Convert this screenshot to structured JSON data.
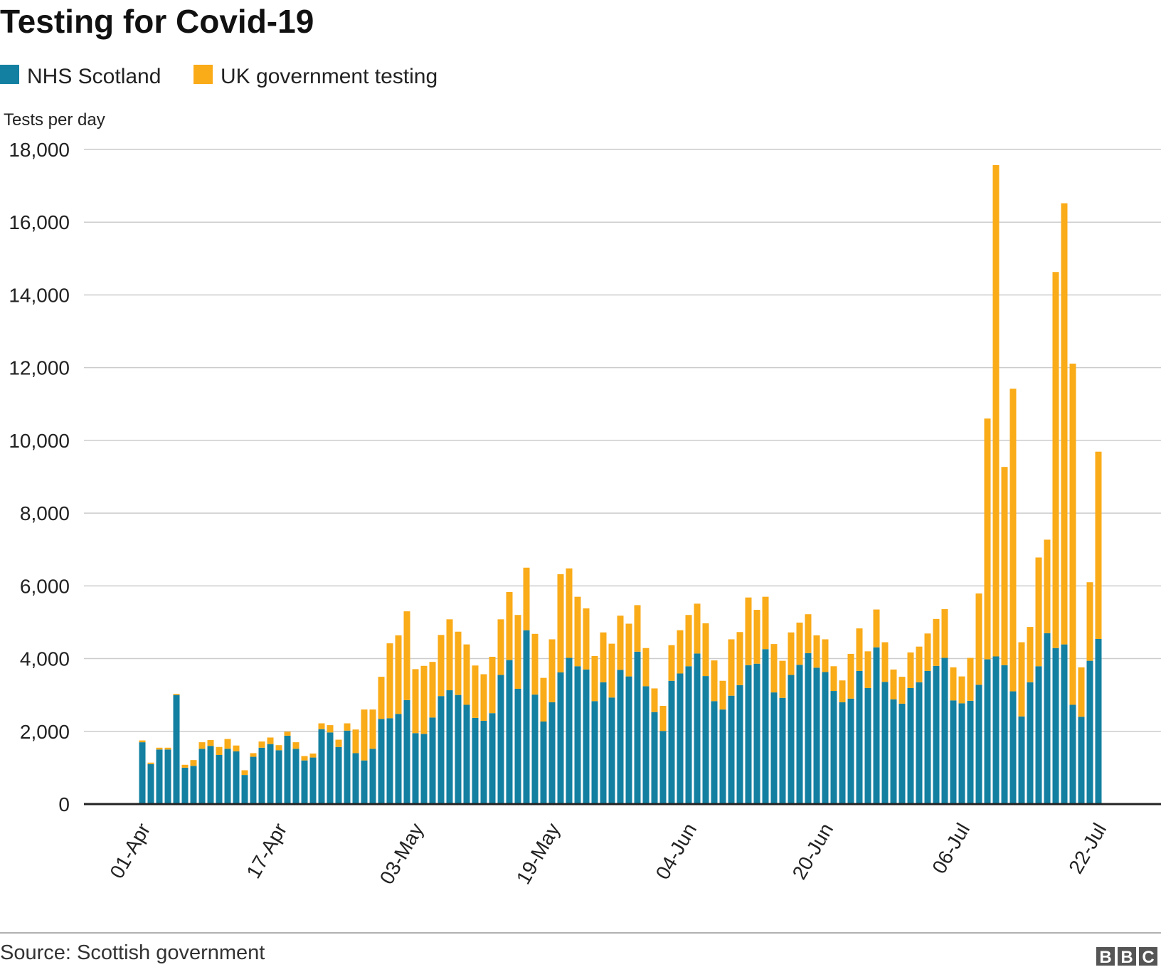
{
  "chart_data": {
    "type": "bar",
    "stacked": true,
    "title": "Testing for Covid-19",
    "ylabel": "Tests per day",
    "xlabel": "",
    "ylim": [
      0,
      18000
    ],
    "yticks": [
      "0",
      "2,000",
      "4,000",
      "6,000",
      "8,000",
      "10,000",
      "12,000",
      "14,000",
      "16,000",
      "18,000"
    ],
    "ytick_values": [
      0,
      2000,
      4000,
      6000,
      8000,
      10000,
      12000,
      14000,
      16000,
      18000
    ],
    "xticks": [
      {
        "label": "01-Apr",
        "index": 0
      },
      {
        "label": "17-Apr",
        "index": 16
      },
      {
        "label": "03-May",
        "index": 32
      },
      {
        "label": "19-May",
        "index": 48
      },
      {
        "label": "04-Jun",
        "index": 64
      },
      {
        "label": "20-Jun",
        "index": 80
      },
      {
        "label": "06-Jul",
        "index": 96
      },
      {
        "label": "22-Jul",
        "index": 112
      }
    ],
    "x_start": "01-Apr",
    "categories": [
      "01-Apr",
      "02-Apr",
      "03-Apr",
      "04-Apr",
      "05-Apr",
      "06-Apr",
      "07-Apr",
      "08-Apr",
      "09-Apr",
      "10-Apr",
      "11-Apr",
      "12-Apr",
      "13-Apr",
      "14-Apr",
      "15-Apr",
      "16-Apr",
      "17-Apr",
      "18-Apr",
      "19-Apr",
      "20-Apr",
      "21-Apr",
      "22-Apr",
      "23-Apr",
      "24-Apr",
      "25-Apr",
      "26-Apr",
      "27-Apr",
      "28-Apr",
      "29-Apr",
      "30-Apr",
      "01-May",
      "02-May",
      "03-May",
      "04-May",
      "05-May",
      "06-May",
      "07-May",
      "08-May",
      "09-May",
      "10-May",
      "11-May",
      "12-May",
      "13-May",
      "14-May",
      "15-May",
      "16-May",
      "17-May",
      "18-May",
      "19-May",
      "20-May",
      "21-May",
      "22-May",
      "23-May",
      "24-May",
      "25-May",
      "26-May",
      "27-May",
      "28-May",
      "29-May",
      "30-May",
      "31-May",
      "01-Jun",
      "02-Jun",
      "03-Jun",
      "04-Jun",
      "05-Jun",
      "06-Jun",
      "07-Jun",
      "08-Jun",
      "09-Jun",
      "10-Jun",
      "11-Jun",
      "12-Jun",
      "13-Jun",
      "14-Jun",
      "15-Jun",
      "16-Jun",
      "17-Jun",
      "18-Jun",
      "19-Jun",
      "20-Jun",
      "21-Jun",
      "22-Jun",
      "23-Jun",
      "24-Jun",
      "25-Jun",
      "26-Jun",
      "27-Jun",
      "28-Jun",
      "29-Jun",
      "30-Jun",
      "01-Jul",
      "02-Jul",
      "03-Jul",
      "04-Jul",
      "05-Jul",
      "06-Jul",
      "07-Jul",
      "08-Jul",
      "09-Jul",
      "10-Jul",
      "11-Jul",
      "12-Jul",
      "13-Jul",
      "14-Jul",
      "15-Jul",
      "16-Jul",
      "17-Jul",
      "18-Jul",
      "19-Jul",
      "20-Jul",
      "21-Jul",
      "22-Jul"
    ],
    "series": [
      {
        "name": "NHS Scotland",
        "color": "#1380a1",
        "values": [
          1700,
          1100,
          1500,
          1500,
          3000,
          1000,
          1050,
          1520,
          1600,
          1350,
          1520,
          1450,
          800,
          1300,
          1550,
          1650,
          1480,
          1880,
          1520,
          1200,
          1280,
          2060,
          1970,
          1570,
          2020,
          1400,
          1200,
          1520,
          2340,
          2360,
          2480,
          2860,
          1950,
          1930,
          2380,
          2970,
          3130,
          3000,
          2730,
          2370,
          2290,
          2500,
          3550,
          3960,
          3170,
          4780,
          3010,
          2270,
          2800,
          3620,
          4020,
          3790,
          3700,
          2830,
          3350,
          2930,
          3690,
          3510,
          4190,
          3240,
          2530,
          2010,
          3390,
          3590,
          3790,
          4140,
          3520,
          2830,
          2600,
          2980,
          3270,
          3820,
          3860,
          4260,
          3070,
          2920,
          3550,
          3830,
          4150,
          3750,
          3630,
          3110,
          2800,
          2900,
          3660,
          3190,
          4310,
          3360,
          2880,
          2760,
          3190,
          3350,
          3660,
          3800,
          4020,
          2850,
          2770,
          2840,
          3280,
          3980,
          4060,
          3820,
          3100,
          2410,
          3350,
          3790,
          4700,
          4290,
          4390,
          2730,
          2400,
          3940,
          4540
        ]
      },
      {
        "name": "UK government testing",
        "color": "#faab18",
        "values": [
          50,
          40,
          50,
          50,
          30,
          80,
          160,
          180,
          160,
          220,
          270,
          160,
          130,
          100,
          170,
          180,
          140,
          110,
          180,
          120,
          110,
          160,
          200,
          200,
          200,
          650,
          1400,
          1080,
          1160,
          2060,
          2160,
          2440,
          1760,
          1870,
          1530,
          1680,
          1950,
          1740,
          1660,
          1440,
          1280,
          1550,
          1530,
          1870,
          2030,
          1720,
          1670,
          1200,
          1730,
          2700,
          2460,
          1910,
          1680,
          1240,
          1370,
          1480,
          1490,
          1450,
          1280,
          1050,
          650,
          690,
          980,
          1190,
          1410,
          1370,
          1450,
          1120,
          790,
          1550,
          1460,
          1860,
          1480,
          1440,
          1330,
          1020,
          1170,
          1160,
          1070,
          890,
          900,
          680,
          600,
          1230,
          1170,
          1010,
          1040,
          1090,
          820,
          740,
          980,
          980,
          1030,
          1290,
          1340,
          910,
          740,
          1180,
          2510,
          6620,
          13510,
          5450,
          8320,
          2040,
          1520,
          2990,
          2570,
          10340,
          12130,
          9380,
          1360,
          2160,
          5150
        ]
      }
    ],
    "grid": true,
    "legend_position": "top-left"
  },
  "source": "Source: Scottish government",
  "brand": {
    "letters": [
      "B",
      "B",
      "C"
    ]
  }
}
